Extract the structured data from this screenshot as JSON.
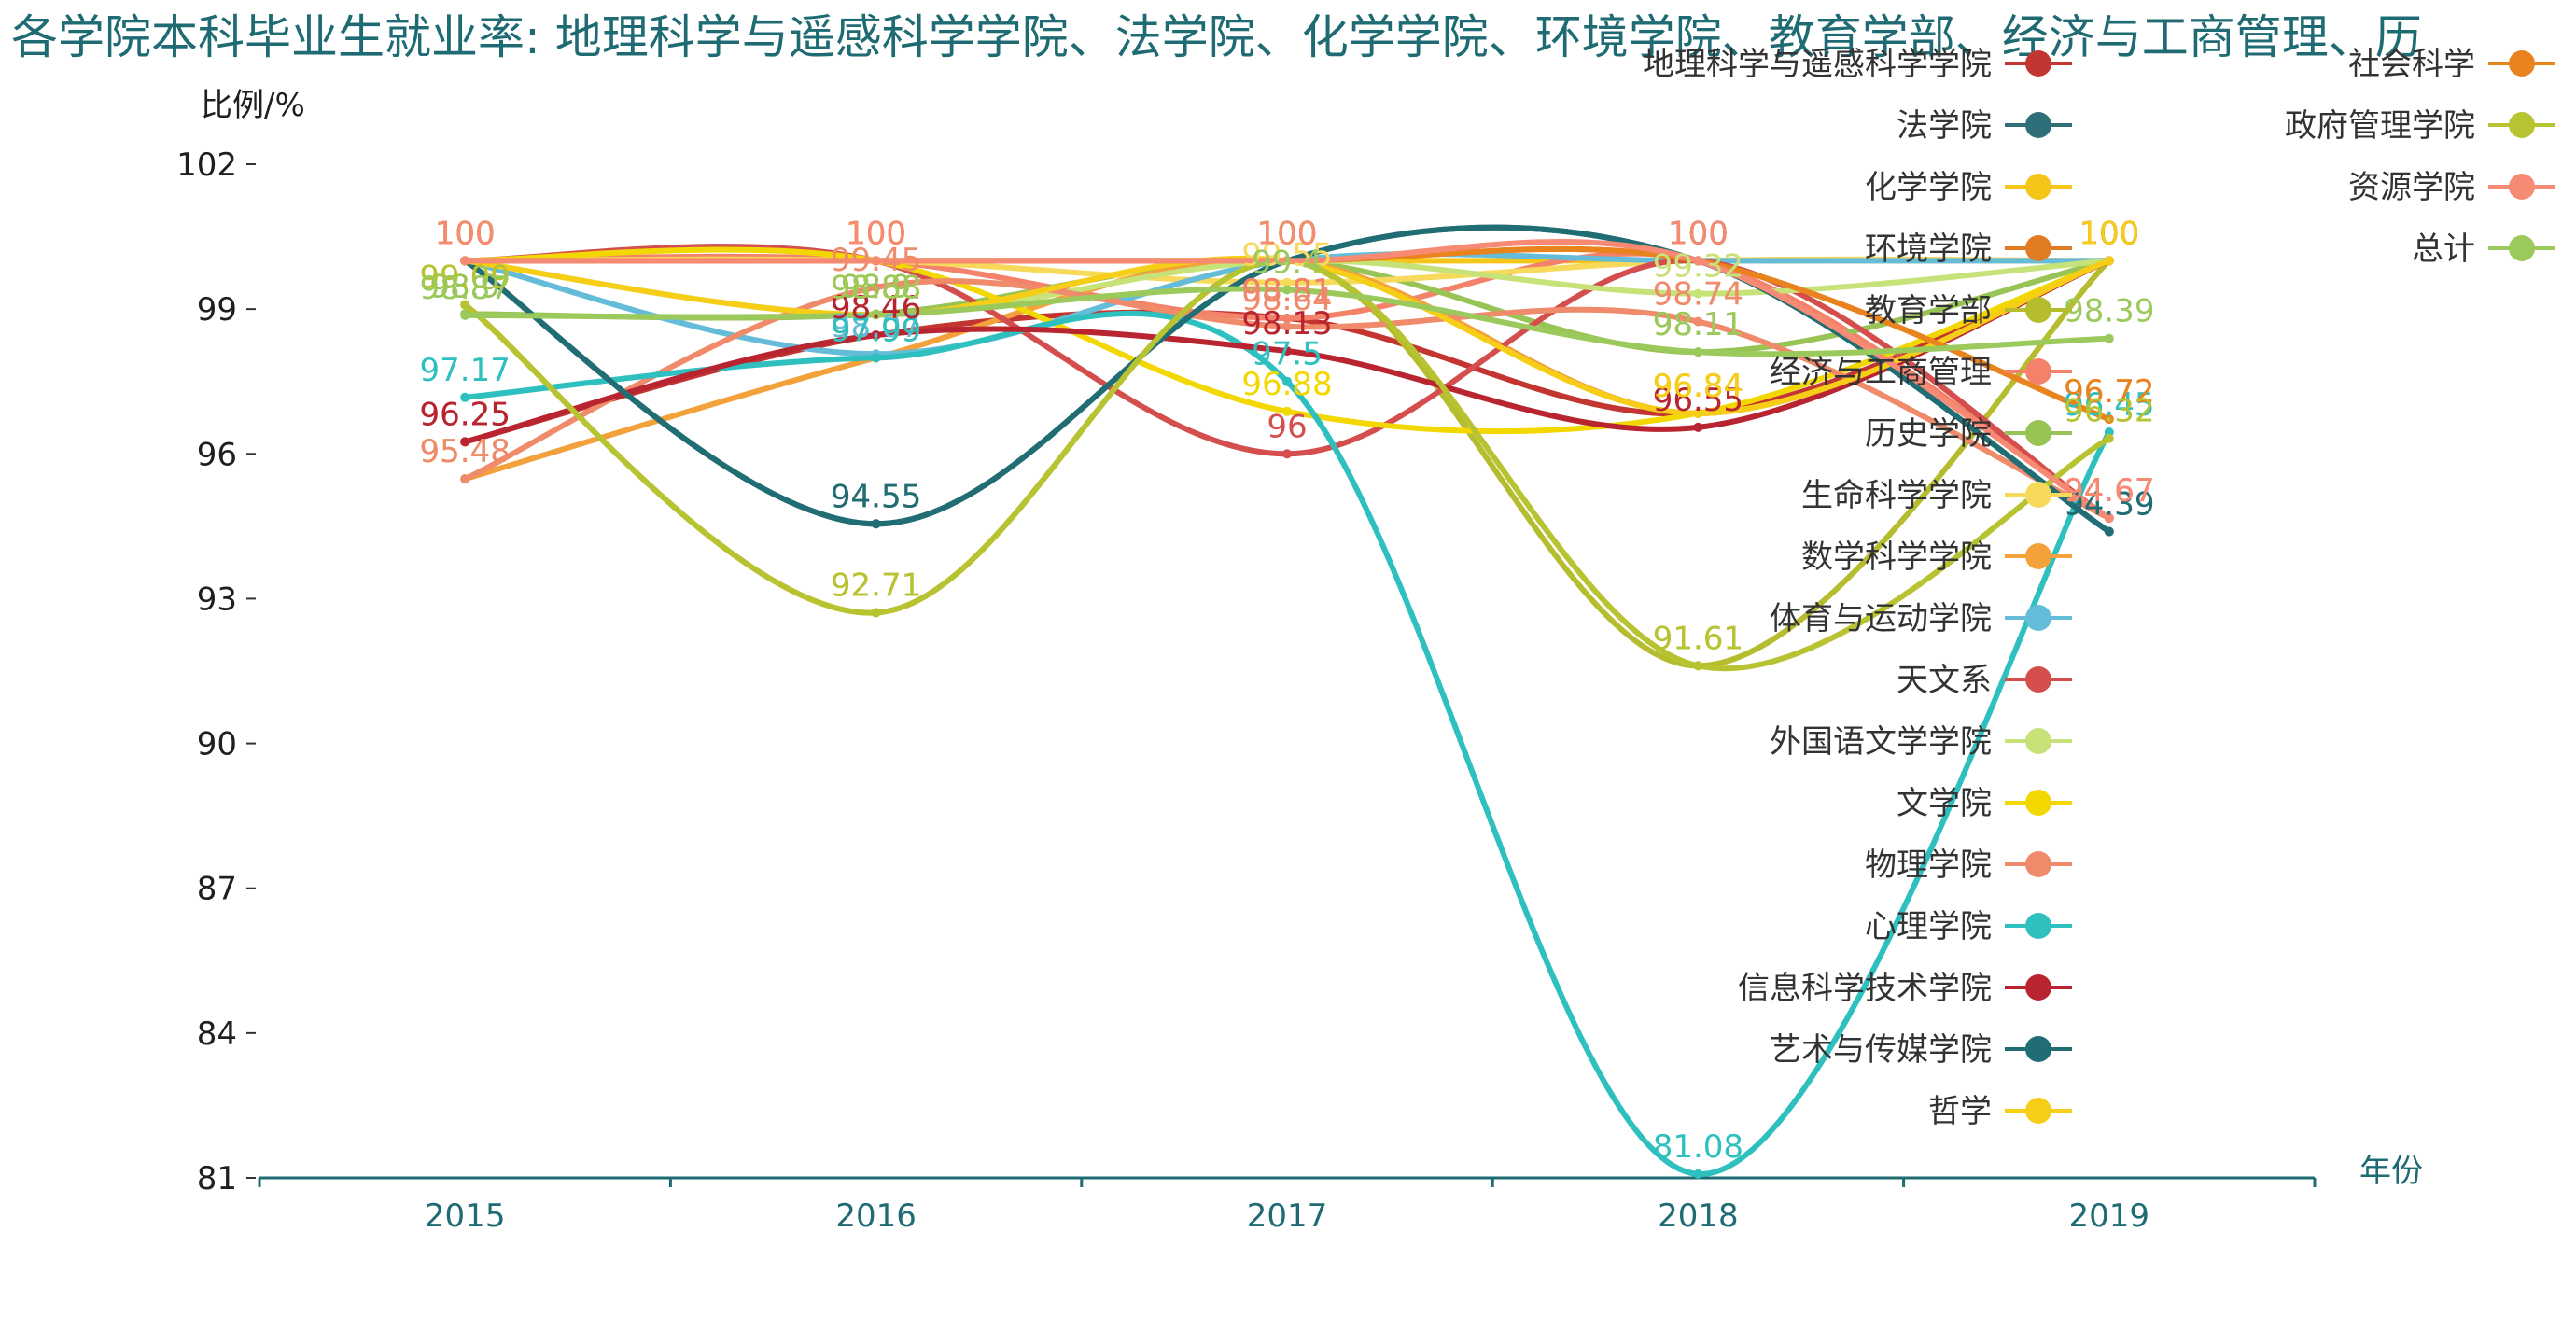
{
  "chart_data": {
    "type": "line",
    "title": "各学院本科毕业生就业率: 地理科学与遥感科学学院、法学院、化学学院、环境学院、教育学部、经济与工商管理、历",
    "ylabel": "比例/%",
    "xlabel": "年份",
    "x": [
      "2015",
      "2016",
      "2017",
      "2018",
      "2019"
    ],
    "y_ticks": [
      "81",
      "84",
      "87",
      "90",
      "93",
      "96",
      "99",
      "102"
    ],
    "ylim": [
      81,
      102
    ],
    "series": [
      {
        "name": "地理科学与遥感科学学院",
        "color": "#c23531",
        "values": [
          96.25,
          98.46,
          98.81,
          96.84,
          100
        ]
      },
      {
        "name": "法学院",
        "color": "#2f6f7a",
        "values": [
          100,
          94.55,
          100,
          100,
          94.39
        ]
      },
      {
        "name": "化学学院",
        "color": "#f5c518",
        "values": [
          100,
          100,
          100,
          100,
          100
        ]
      },
      {
        "name": "环境学院",
        "color": "#e07b24",
        "values": [
          100,
          100,
          100,
          100,
          96.72
        ]
      },
      {
        "name": "教育学部",
        "color": "#b5bd2f",
        "values": [
          99.09,
          92.71,
          100,
          91.61,
          100
        ]
      },
      {
        "name": "经济与工商管理",
        "color": "#f4826a",
        "values": [
          100,
          100,
          98.81,
          100,
          94.67
        ]
      },
      {
        "name": "历史学院",
        "color": "#98c455",
        "values": [
          98.9,
          98.9,
          100,
          98.11,
          100
        ]
      },
      {
        "name": "生命科学学院",
        "color": "#f7d95b",
        "values": [
          100,
          100,
          99.55,
          100,
          100
        ]
      },
      {
        "name": "数学科学学院",
        "color": "#f2a13b",
        "values": [
          95.48,
          97.99,
          100,
          96.84,
          100
        ]
      },
      {
        "name": "体育与运动学院",
        "color": "#64bcd9",
        "values": [
          100,
          98.07,
          100,
          100,
          100
        ]
      },
      {
        "name": "天文系",
        "color": "#d44e4e",
        "values": [
          100,
          100,
          96,
          100,
          94.67
        ]
      },
      {
        "name": "外国语文学学院",
        "color": "#c8e27a",
        "values": [
          100,
          98.88,
          100,
          99.32,
          100
        ]
      },
      {
        "name": "文学院",
        "color": "#f2d700",
        "values": [
          100,
          100,
          96.88,
          96.84,
          100
        ]
      },
      {
        "name": "物理学院",
        "color": "#ef8a6a",
        "values": [
          95.48,
          99.45,
          98.64,
          98.74,
          94.67
        ]
      },
      {
        "name": "心理学院",
        "color": "#2ebfbf",
        "values": [
          97.17,
          97.99,
          97.5,
          81.08,
          96.45
        ]
      },
      {
        "name": "信息科学技术学院",
        "color": "#b8242f",
        "values": [
          96.25,
          98.46,
          98.13,
          96.55,
          100
        ]
      },
      {
        "name": "艺术与传媒学院",
        "color": "#216d74",
        "values": [
          100,
          94.55,
          100,
          100,
          94.39
        ]
      },
      {
        "name": "哲学",
        "color": "#f7ce17",
        "values": [
          100,
          98.88,
          100,
          96.84,
          100
        ]
      },
      {
        "name": "社会科学",
        "color": "#e8831e",
        "values": [
          100,
          100,
          100,
          100,
          96.72
        ]
      },
      {
        "name": "政府管理学院",
        "color": "#b8c332",
        "values": [
          99.09,
          92.71,
          100,
          91.61,
          96.32
        ]
      },
      {
        "name": "资源学院",
        "color": "#f78a74",
        "values": [
          100,
          100,
          100,
          100,
          94.67
        ]
      },
      {
        "name": "总计",
        "color": "#9cc95c",
        "values": [
          98.87,
          98.88,
          99.4,
          98.11,
          98.39
        ]
      }
    ],
    "legend_position": "right"
  }
}
